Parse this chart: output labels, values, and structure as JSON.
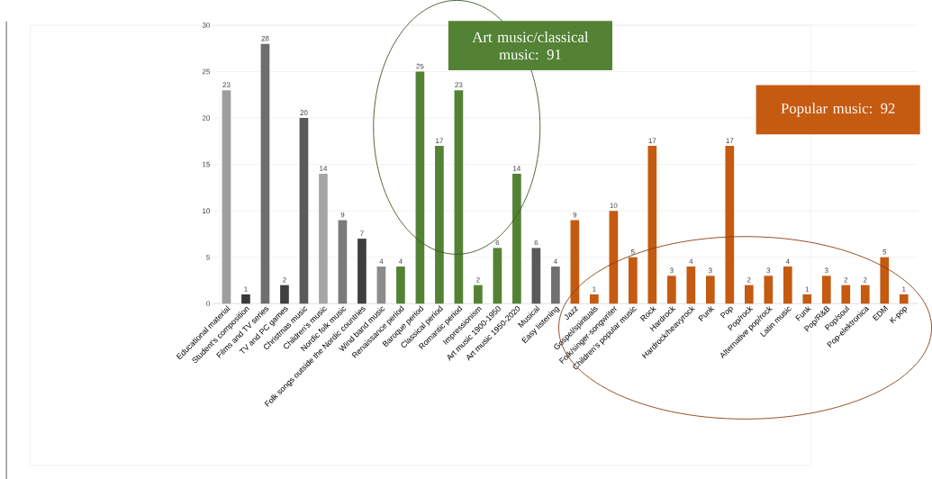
{
  "chart_data": {
    "type": "bar",
    "categories": [
      "Educational material",
      "Student's composition",
      "Films and TV series",
      "TV and PC games",
      "Christmas music",
      "Children's music",
      "Nordic folk music",
      "Folk songs outside the Nordic countries",
      "Wind band music",
      "Renaissance period",
      "Baroque period",
      "Classical period",
      "Romantic period",
      "Impressionism",
      "Art music 1900-1950",
      "Art music 1950-2020",
      "Musical",
      "Easy listening",
      "Jazz",
      "Gospel/spirituals",
      "Folk/singer-songwriter",
      "Children's popular music",
      "Rock",
      "Hardrock",
      "Hardrock/heavyrock",
      "Punk",
      "Pop",
      "Pop/rock",
      "Alternative pop/rock",
      "Latin music",
      "Funk",
      "Pop/R&B",
      "Pop/soul",
      "Pop-elektronica",
      "EDM",
      "K-pop"
    ],
    "values": [
      23,
      1,
      28,
      2,
      20,
      14,
      9,
      7,
      4,
      4,
      25,
      17,
      23,
      2,
      6,
      14,
      6,
      4,
      9,
      1,
      10,
      5,
      17,
      3,
      4,
      3,
      17,
      2,
      3,
      4,
      1,
      3,
      2,
      2,
      5,
      1
    ],
    "colors": [
      "#9e9e9e",
      "#3a3a3a",
      "#6e6e6e",
      "#404040",
      "#5a5a5a",
      "#a6a6a6",
      "#7a7a7a",
      "#3f3f3f",
      "#8c8c8c",
      "#548235",
      "#548235",
      "#548235",
      "#548235",
      "#548235",
      "#548235",
      "#548235",
      "#5a5a5a",
      "#707070",
      "#c55a11",
      "#c55a11",
      "#c55a11",
      "#c55a11",
      "#c55a11",
      "#c55a11",
      "#c55a11",
      "#c55a11",
      "#c55a11",
      "#c55a11",
      "#c55a11",
      "#c55a11",
      "#c55a11",
      "#c55a11",
      "#c55a11",
      "#c55a11",
      "#c55a11",
      "#c55a11"
    ],
    "ylim": [
      0,
      30
    ],
    "yticks": [
      0,
      5,
      10,
      15,
      20,
      25,
      30
    ],
    "grid": "y",
    "data_labels": true,
    "annotations": [
      "Art music/classical music: 91",
      "Popular music: 92"
    ]
  }
}
